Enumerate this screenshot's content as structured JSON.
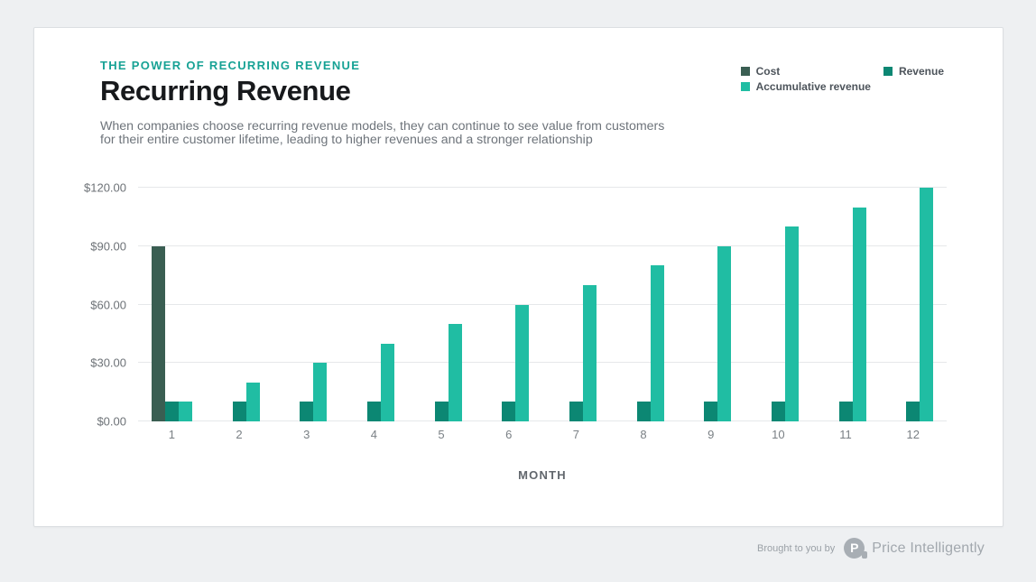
{
  "page": {
    "background_color": "#eef0f2",
    "card_background": "#ffffff"
  },
  "header": {
    "eyebrow": "THE POWER OF RECURRING REVENUE",
    "title": "Recurring Revenue",
    "subtitle_line1": "When companies choose recurring revenue models, they can continue to see value from customers",
    "subtitle_line2": "for their entire customer lifetime, leading to higher revenues and a stronger relationship"
  },
  "legend": {
    "columns": [
      [
        {
          "label": "Cost",
          "color": "#3a5e52"
        },
        {
          "label": "Accumulative revenue",
          "color": "#20bda3"
        }
      ],
      [
        {
          "label": "Revenue",
          "color": "#0c8773"
        }
      ]
    ]
  },
  "chart_data": {
    "type": "bar",
    "title": "Recurring Revenue",
    "xlabel": "MONTH",
    "ylabel": "",
    "categories": [
      "1",
      "2",
      "3",
      "4",
      "5",
      "6",
      "7",
      "8",
      "9",
      "10",
      "11",
      "12"
    ],
    "series": [
      {
        "name": "Cost",
        "color": "#3a5e52",
        "values": [
          90,
          0,
          0,
          0,
          0,
          0,
          0,
          0,
          0,
          0,
          0,
          0
        ]
      },
      {
        "name": "Revenue",
        "color": "#0c8773",
        "values": [
          10,
          10,
          10,
          10,
          10,
          10,
          10,
          10,
          10,
          10,
          10,
          10
        ]
      },
      {
        "name": "Accumulative revenue",
        "color": "#20bda3",
        "values": [
          10,
          20,
          30,
          40,
          50,
          60,
          70,
          80,
          90,
          100,
          110,
          120
        ]
      }
    ],
    "ylim": [
      0,
      120
    ],
    "yticks": [
      {
        "value": 0,
        "label": "$0.00"
      },
      {
        "value": 30,
        "label": "$30.00"
      },
      {
        "value": 60,
        "label": "$60.00"
      },
      {
        "value": 90,
        "label": "$90.00"
      },
      {
        "value": 120,
        "label": "$120.00"
      }
    ],
    "grid": true,
    "legend_position": "top-right"
  },
  "footer": {
    "brought_by": "Brought to you by",
    "brand": "Price Intelligently",
    "logo_letter": "P"
  }
}
